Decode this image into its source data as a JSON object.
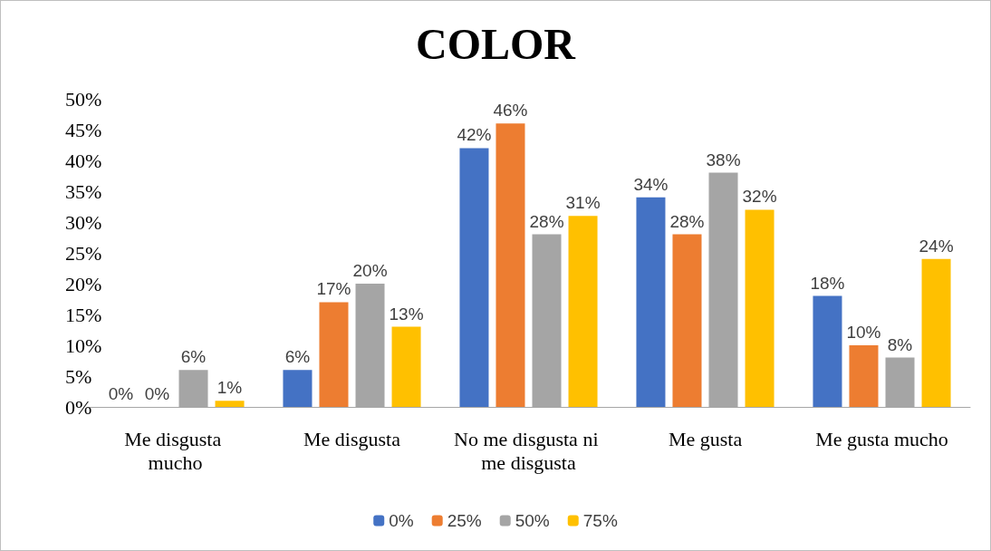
{
  "chart_data": {
    "type": "bar",
    "title": "COLOR",
    "categories": [
      "Me disgusta mucho",
      "Me disgusta",
      "No me disgusta ni me disgusta",
      "Me gusta",
      "Me gusta mucho"
    ],
    "series": [
      {
        "name": "0%",
        "color": "#4472c4",
        "values": [
          0,
          6,
          42,
          34,
          18
        ],
        "value_labels": [
          "0%",
          "6%",
          "42%",
          "34%",
          "18%"
        ]
      },
      {
        "name": "25%",
        "color": "#ed7d31",
        "values": [
          0,
          17,
          46,
          28,
          10
        ],
        "value_labels": [
          "0%",
          "17%",
          "46%",
          "28%",
          "10%"
        ]
      },
      {
        "name": "50%",
        "color": "#a5a5a5",
        "values": [
          6,
          20,
          28,
          38,
          8
        ],
        "value_labels": [
          "6%",
          "20%",
          "28%",
          "38%",
          "8%"
        ]
      },
      {
        "name": "75%",
        "color": "#ffc000",
        "values": [
          1,
          13,
          31,
          32,
          24
        ],
        "value_labels": [
          "1%",
          "13%",
          "31%",
          "32%",
          "24%"
        ]
      }
    ],
    "ylim": [
      0,
      50
    ],
    "yticks": [
      {
        "value": 0,
        "label": "0%"
      },
      {
        "value": 5,
        "label": "5%"
      },
      {
        "value": 10,
        "label": "10%"
      },
      {
        "value": 15,
        "label": "15%"
      },
      {
        "value": 20,
        "label": "20%"
      },
      {
        "value": 25,
        "label": "25%"
      },
      {
        "value": 30,
        "label": "30%"
      },
      {
        "value": 35,
        "label": "35%"
      },
      {
        "value": 40,
        "label": "40%"
      },
      {
        "value": 45,
        "label": "45%"
      },
      {
        "value": 50,
        "label": "50%"
      }
    ],
    "grid": false,
    "legend": "bottom"
  }
}
